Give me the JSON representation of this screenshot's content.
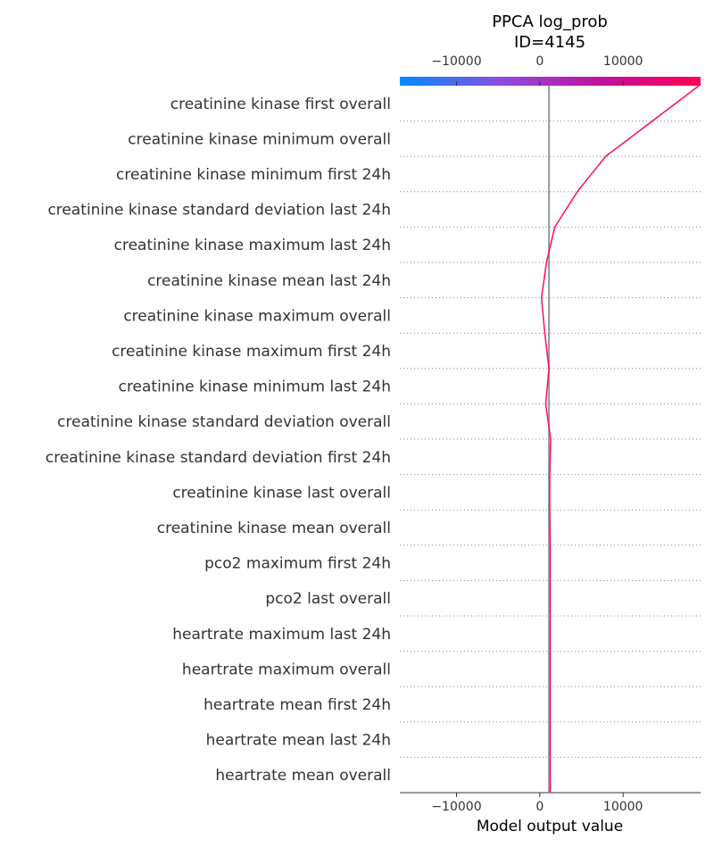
{
  "chart_data": {
    "type": "line",
    "title": "PPCA log_prob",
    "subtitle": "ID=4145",
    "xlabel": "Model output value",
    "xlim": [
      -16800,
      19300
    ],
    "x_ticks": [
      -10000,
      0,
      10000
    ],
    "x_tick_labels": [
      "−10000",
      "0",
      "10000"
    ],
    "base_value": 1100,
    "features": [
      "creatinine kinase  first  overall",
      "creatinine kinase  minimum  overall",
      "creatinine kinase  minimum  first 24h",
      "creatinine kinase  standard deviation  last 24h",
      "creatinine kinase  maximum  last 24h",
      "creatinine kinase  mean  last 24h",
      "creatinine kinase  maximum  overall",
      "creatinine kinase  maximum  first 24h",
      "creatinine kinase  minimum  last 24h",
      "creatinine kinase  standard deviation  overall",
      "creatinine kinase  standard deviation  first 24h",
      "creatinine kinase  last  overall",
      "creatinine kinase  mean  overall",
      "pco2  maximum  first 24h",
      "pco2  last  overall",
      "heartrate  maximum  last 24h",
      "heartrate  maximum  overall",
      "heartrate  mean  first 24h",
      "heartrate  mean  last 24h",
      "heartrate  mean  overall"
    ],
    "path_values": [
      19100,
      13500,
      7900,
      4500,
      1800,
      800,
      200,
      600,
      1100,
      700,
      1300,
      1200,
      1200,
      1250,
      1250,
      1250,
      1250,
      1250,
      1250,
      1250,
      1250
    ],
    "line_color": "#ff0d57",
    "colorbar": {
      "colors": [
        "#008bfb",
        "#8a4fe0",
        "#c0119f",
        "#ff0052"
      ]
    },
    "grid": "dotted horizontal",
    "legend": "none"
  }
}
